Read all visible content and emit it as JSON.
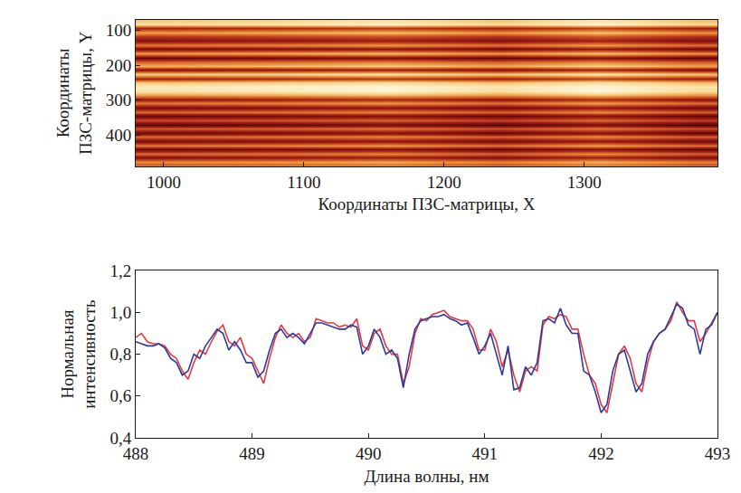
{
  "chart_data": [
    {
      "type": "heatmap",
      "xlabel": "Координаты ПЗС-матрицы, X",
      "ylabel": "Координаты ПЗС-матрицы, Y",
      "x": [
        1000,
        1080,
        1160,
        1240,
        1310,
        1380
      ],
      "y": [
        70,
        82,
        94,
        106,
        118,
        130,
        142,
        154,
        166,
        178,
        190,
        202,
        214,
        226,
        238,
        250,
        262,
        274,
        286,
        298,
        310,
        322,
        334,
        346,
        358,
        370,
        382,
        394,
        406,
        418,
        430,
        442,
        454,
        466,
        478,
        490
      ],
      "z": [
        [
          0.8,
          0.83,
          0.88,
          0.78,
          0.9,
          0.77
        ],
        [
          0.9,
          0.93,
          0.98,
          0.88,
          1.0,
          0.87
        ],
        [
          0.3,
          0.33,
          0.38,
          0.28,
          0.4,
          0.27
        ],
        [
          0.7,
          0.73,
          0.78,
          0.68,
          0.8,
          0.67
        ],
        [
          0.4,
          0.43,
          0.48,
          0.38,
          0.5,
          0.37
        ],
        [
          0.2,
          0.23,
          0.28,
          0.18,
          0.3,
          0.17
        ],
        [
          0.6,
          0.63,
          0.68,
          0.58,
          0.7,
          0.57
        ],
        [
          0.15,
          0.18,
          0.23,
          0.13,
          0.25,
          0.12
        ],
        [
          0.7,
          0.73,
          0.78,
          0.68,
          0.8,
          0.67
        ],
        [
          0.1,
          0.13,
          0.18,
          0.08,
          0.2,
          0.07
        ],
        [
          0.5,
          0.53,
          0.58,
          0.48,
          0.6,
          0.47
        ],
        [
          0.75,
          0.78,
          0.83,
          0.73,
          0.85,
          0.72
        ],
        [
          0.2,
          0.23,
          0.28,
          0.18,
          0.3,
          0.17
        ],
        [
          0.85,
          0.88,
          0.93,
          0.83,
          0.95,
          0.82
        ],
        [
          0.3,
          0.33,
          0.38,
          0.28,
          0.4,
          0.27
        ],
        [
          0.8,
          0.83,
          0.88,
          0.78,
          0.9,
          0.77
        ],
        [
          0.95,
          0.98,
          1.0,
          0.93,
          1.0,
          0.92
        ],
        [
          0.9,
          0.93,
          0.98,
          0.88,
          1.0,
          0.87
        ],
        [
          0.7,
          0.73,
          0.78,
          0.68,
          0.8,
          0.67
        ],
        [
          0.25,
          0.28,
          0.33,
          0.23,
          0.35,
          0.22
        ],
        [
          0.6,
          0.63,
          0.68,
          0.58,
          0.7,
          0.57
        ],
        [
          0.15,
          0.18,
          0.23,
          0.13,
          0.25,
          0.12
        ],
        [
          0.55,
          0.58,
          0.63,
          0.53,
          0.65,
          0.52
        ],
        [
          0.1,
          0.13,
          0.18,
          0.08,
          0.2,
          0.07
        ],
        [
          0.45,
          0.48,
          0.53,
          0.43,
          0.55,
          0.42
        ],
        [
          0.05,
          0.08,
          0.13,
          0.03,
          0.15,
          0.02
        ],
        [
          0.5,
          0.53,
          0.58,
          0.48,
          0.6,
          0.47
        ],
        [
          0.1,
          0.13,
          0.18,
          0.08,
          0.2,
          0.07
        ],
        [
          0.55,
          0.58,
          0.63,
          0.53,
          0.65,
          0.52
        ],
        [
          0.15,
          0.18,
          0.23,
          0.13,
          0.25,
          0.12
        ],
        [
          0.6,
          0.63,
          0.68,
          0.58,
          0.7,
          0.57
        ],
        [
          0.1,
          0.13,
          0.18,
          0.08,
          0.2,
          0.07
        ],
        [
          0.55,
          0.58,
          0.63,
          0.53,
          0.65,
          0.52
        ],
        [
          0.2,
          0.23,
          0.28,
          0.18,
          0.3,
          0.17
        ],
        [
          0.65,
          0.68,
          0.73,
          0.63,
          0.75,
          0.62
        ],
        [
          0.4,
          0.43,
          0.48,
          0.38,
          0.5,
          0.37
        ]
      ],
      "xlim": [
        980,
        1395
      ],
      "ylim": [
        490,
        70
      ],
      "xticks": [
        1000,
        1100,
        1200,
        1300
      ],
      "yticks": [
        100,
        200,
        300,
        400
      ]
    },
    {
      "type": "line",
      "xlabel": "Длина волны, нм",
      "ylabel": "Нормальная интенсивность",
      "x": [
        488.0,
        488.05,
        488.1,
        488.15,
        488.2,
        488.25,
        488.3,
        488.35,
        488.4,
        488.45,
        488.5,
        488.55,
        488.6,
        488.65,
        488.7,
        488.75,
        488.8,
        488.85,
        488.9,
        488.95,
        489.0,
        489.05,
        489.1,
        489.15,
        489.2,
        489.25,
        489.3,
        489.35,
        489.4,
        489.45,
        489.5,
        489.55,
        489.6,
        489.65,
        489.7,
        489.75,
        489.8,
        489.85,
        489.9,
        489.95,
        490.0,
        490.05,
        490.1,
        490.15,
        490.2,
        490.25,
        490.3,
        490.35,
        490.4,
        490.45,
        490.5,
        490.55,
        490.6,
        490.65,
        490.7,
        490.75,
        490.8,
        490.85,
        490.9,
        490.95,
        491.0,
        491.05,
        491.1,
        491.15,
        491.2,
        491.25,
        491.3,
        491.35,
        491.4,
        491.45,
        491.5,
        491.55,
        491.6,
        491.65,
        491.7,
        491.75,
        491.8,
        491.85,
        491.9,
        491.95,
        492.0,
        492.05,
        492.1,
        492.15,
        492.2,
        492.25,
        492.3,
        492.35,
        492.4,
        492.45,
        492.5,
        492.55,
        492.6,
        492.65,
        492.7,
        492.75,
        492.8,
        492.85,
        492.9,
        492.95,
        493.0
      ],
      "series": [
        {
          "color": "#e8383d",
          "values": [
            0.88,
            0.9,
            0.86,
            0.85,
            0.85,
            0.84,
            0.8,
            0.78,
            0.72,
            0.68,
            0.76,
            0.82,
            0.8,
            0.86,
            0.91,
            0.94,
            0.86,
            0.84,
            0.88,
            0.8,
            0.78,
            0.72,
            0.66,
            0.78,
            0.88,
            0.94,
            0.9,
            0.88,
            0.9,
            0.86,
            0.88,
            0.97,
            0.96,
            0.95,
            0.95,
            0.93,
            0.94,
            0.93,
            0.97,
            0.84,
            0.82,
            0.9,
            0.92,
            0.84,
            0.8,
            0.8,
            0.66,
            0.74,
            0.9,
            0.97,
            0.96,
            0.99,
            1.0,
            1.01,
            0.98,
            0.97,
            0.96,
            0.96,
            0.92,
            0.82,
            0.82,
            0.92,
            0.86,
            0.74,
            0.82,
            0.7,
            0.62,
            0.72,
            0.74,
            0.72,
            0.94,
            0.98,
            0.97,
            0.99,
            0.98,
            0.92,
            0.92,
            0.8,
            0.7,
            0.66,
            0.56,
            0.52,
            0.66,
            0.8,
            0.84,
            0.78,
            0.66,
            0.62,
            0.76,
            0.86,
            0.9,
            0.92,
            0.96,
            1.05,
            1.0,
            0.96,
            0.96,
            0.86,
            0.9,
            0.95,
            1.0
          ]
        },
        {
          "color": "#2b3a9c",
          "values": [
            0.86,
            0.85,
            0.84,
            0.84,
            0.85,
            0.83,
            0.78,
            0.76,
            0.7,
            0.72,
            0.8,
            0.78,
            0.84,
            0.88,
            0.92,
            0.9,
            0.82,
            0.86,
            0.82,
            0.76,
            0.76,
            0.69,
            0.72,
            0.82,
            0.9,
            0.92,
            0.88,
            0.9,
            0.88,
            0.85,
            0.9,
            0.95,
            0.95,
            0.94,
            0.93,
            0.92,
            0.92,
            0.94,
            0.93,
            0.8,
            0.84,
            0.92,
            0.88,
            0.8,
            0.82,
            0.78,
            0.64,
            0.8,
            0.92,
            0.96,
            0.97,
            0.98,
            0.98,
            0.99,
            0.97,
            0.96,
            0.94,
            0.95,
            0.88,
            0.8,
            0.84,
            0.9,
            0.8,
            0.7,
            0.84,
            0.63,
            0.64,
            0.74,
            0.7,
            0.76,
            0.96,
            0.97,
            0.95,
            1.02,
            0.94,
            0.9,
            0.9,
            0.72,
            0.7,
            0.62,
            0.52,
            0.56,
            0.72,
            0.8,
            0.82,
            0.72,
            0.62,
            0.66,
            0.8,
            0.86,
            0.9,
            0.92,
            0.98,
            1.04,
            1.02,
            0.94,
            0.92,
            0.8,
            0.92,
            0.94,
            1.0
          ]
        }
      ],
      "xlim": [
        488,
        493
      ],
      "ylim": [
        0.4,
        1.2
      ],
      "xticks": [
        488,
        489,
        490,
        491,
        492,
        493
      ],
      "yticks": [
        {
          "value": 0.4,
          "label": "0,4"
        },
        {
          "value": 0.6,
          "label": "0,6"
        },
        {
          "value": 0.8,
          "label": "0,8"
        },
        {
          "value": 1.0,
          "label": "1,0"
        },
        {
          "value": 1.2,
          "label": "1,2"
        }
      ]
    }
  ]
}
